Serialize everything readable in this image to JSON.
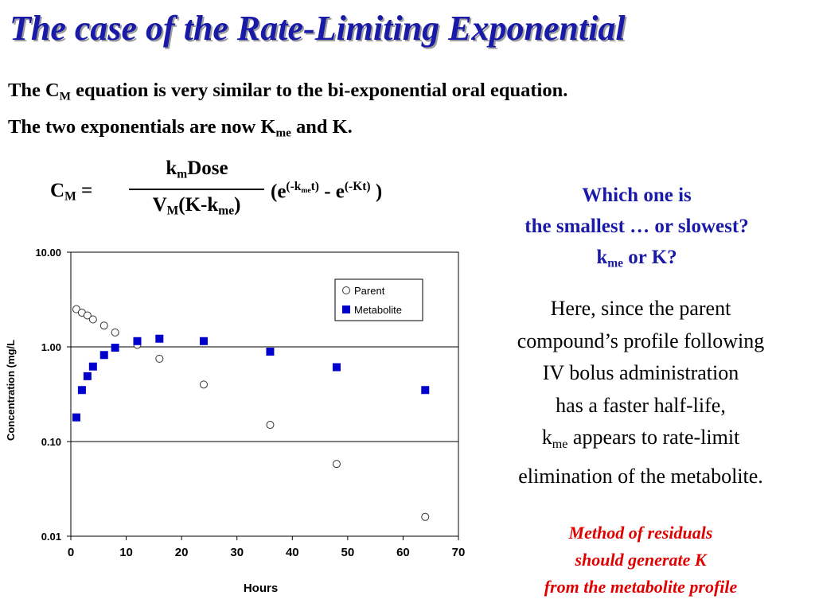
{
  "slide": {
    "title": "The case of the Rate-Limiting Exponential",
    "intro": {
      "line1_pre": "The C",
      "line1_sub": "M",
      "line1_post": " equation is very similar to the bi-exponential oral equation.",
      "line2_pre": "The two exponentials are now K",
      "line2_sub": "me",
      "line2_post": " and K."
    },
    "equation": {
      "lhs_c": "C",
      "lhs_sub": "M",
      "lhs_eq": " =",
      "num_k": "k",
      "num_sub": "m",
      "num_dose": "Dose",
      "den_v": "V",
      "den_v_sub": "M",
      "den_mid": "(K-k",
      "den_sub": "me",
      "den_close": ")",
      "rhs_open": "(e",
      "rhs_sup1_a": "(-k",
      "rhs_sup1_sub": "me",
      "rhs_sup1_b": "t)",
      "rhs_minus": " - e",
      "rhs_sup2": "(-Kt)",
      "rhs_close": " )"
    },
    "question": {
      "line1": "Which one is",
      "line2": "the smallest … or slowest?",
      "line3_k": "k",
      "line3_sub": "me",
      "line3_post": " or K?"
    },
    "explanation": {
      "line1": "Here, since the parent",
      "line2": "compound’s profile following",
      "line3": "IV bolus administration",
      "line4": "has a faster half-life,",
      "line5_k": "k",
      "line5_sub": "me",
      "line5_post": " appears to rate-limit",
      "line6": "elimination of the metabolite."
    },
    "method": {
      "line1": "Method of residuals",
      "line2": "should generate K",
      "line3": "from the metabolite profile"
    }
  },
  "colors": {
    "title": "#1a1aa8",
    "accent_blue": "#1a1aa8",
    "method_red": "#e00000",
    "metabolite_marker": "#0000cc"
  },
  "chart_data": {
    "type": "scatter",
    "xlabel": "Hours",
    "ylabel": "Concentration (mg/L",
    "x_scale": "linear",
    "y_scale": "log",
    "xlim": [
      0,
      70
    ],
    "ylim": [
      0.01,
      10
    ],
    "x_ticks": [
      0,
      10,
      20,
      30,
      40,
      50,
      60,
      70
    ],
    "x_tick_labels": [
      "0",
      "10",
      "20",
      "30",
      "40",
      "50",
      "60",
      "70"
    ],
    "y_ticks": [
      0.01,
      0.1,
      1,
      10
    ],
    "y_tick_labels": [
      "0.01",
      "0.10",
      "1.00",
      "10.00"
    ],
    "grid": "horizontal major lines",
    "legend_position": "top-right",
    "series": [
      {
        "name": "Parent",
        "marker": "open-circle",
        "x": [
          1,
          2,
          3,
          4,
          6,
          8,
          12,
          16,
          24,
          36,
          48,
          64
        ],
        "y": [
          2.5,
          2.3,
          2.15,
          1.95,
          1.68,
          1.42,
          1.05,
          0.75,
          0.4,
          0.15,
          0.058,
          0.016
        ]
      },
      {
        "name": "Metabolite",
        "marker": "filled-square",
        "x": [
          1,
          2,
          3,
          4,
          6,
          8,
          12,
          16,
          24,
          36,
          48,
          64
        ],
        "y": [
          0.18,
          0.35,
          0.49,
          0.62,
          0.82,
          0.98,
          1.15,
          1.22,
          1.15,
          0.89,
          0.61,
          0.35
        ]
      }
    ]
  }
}
